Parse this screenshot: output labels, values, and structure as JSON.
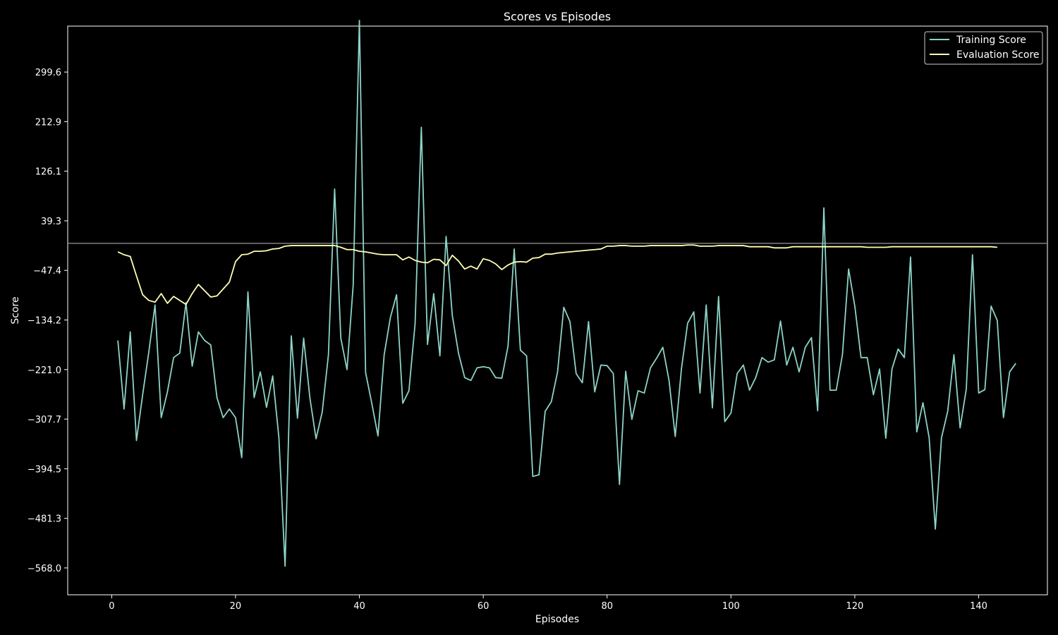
{
  "chart_data": {
    "type": "line",
    "title": "Scores vs Episodes",
    "xlabel": "Episodes",
    "ylabel": "Score",
    "xlim": [
      -7.1,
      151.1
    ],
    "ylim": [
      -615,
      380
    ],
    "xticks": [
      0,
      20,
      40,
      60,
      80,
      100,
      120,
      140
    ],
    "yticks": [
      -568.0,
      -481.3,
      -394.5,
      -307.7,
      -221.0,
      -134.2,
      -47.4,
      39.3,
      126.1,
      212.9,
      299.6
    ],
    "ytick_labels": [
      "−568.0",
      "−481.3",
      "−394.5",
      "−307.7",
      "−221.0",
      "−134.2",
      "−47.4",
      "39.3",
      "126.1",
      "212.9",
      "299.6"
    ],
    "hline": {
      "y": 0,
      "color": "#808080"
    },
    "grid": false,
    "legend_position": "top-right",
    "background": "#000000",
    "series": [
      {
        "name": "Training Score",
        "color": "#8dd3c7",
        "values": [
          -170,
          -290,
          -155,
          -345,
          -265,
          -190,
          -108,
          -305,
          -260,
          -200,
          -192,
          -104,
          -215,
          -155,
          -170,
          -178,
          -270,
          -305,
          -290,
          -305,
          -375,
          -85,
          -270,
          -225,
          -287,
          -232,
          -340,
          -565,
          -162,
          -306,
          -166,
          -270,
          -342,
          -295,
          -195,
          95,
          -166,
          -221,
          -73,
          390,
          -226,
          -280,
          -337,
          -195,
          -130,
          -90,
          -280,
          -258,
          -140,
          203,
          -177,
          -88,
          -197,
          12,
          -126,
          -192,
          -235,
          -240,
          -218,
          -216,
          -218,
          -235,
          -236,
          -180,
          -10,
          -187,
          -197,
          -408,
          -405,
          -294,
          -277,
          -225,
          -112,
          -137,
          -228,
          -244,
          -137,
          -260,
          -213,
          -214,
          -228,
          -422,
          -224,
          -308,
          -258,
          -262,
          -218,
          -201,
          -182,
          -240,
          -338,
          -220,
          -140,
          -120,
          -262,
          -108,
          -288,
          -93,
          -312,
          -297,
          -228,
          -213,
          -257,
          -235,
          -200,
          -208,
          -204,
          -136,
          -213,
          -182,
          -225,
          -182,
          -165,
          -293,
          62,
          -257,
          -257,
          -195,
          -45,
          -110,
          -200,
          -200,
          -265,
          -220,
          -341,
          -220,
          -185,
          -200,
          -24,
          -330,
          -279,
          -340,
          -500,
          -340,
          -294,
          -195,
          -323,
          -255,
          -20,
          -262,
          -256,
          -110,
          -135,
          -305,
          -225,
          -210
        ]
      },
      {
        "name": "Evaluation Score",
        "color": "#ffffb3",
        "values": [
          -15,
          -20,
          -23,
          -57,
          -90,
          -100,
          -103,
          -88,
          -105,
          -93,
          -100,
          -107,
          -88,
          -72,
          -83,
          -94,
          -92,
          -80,
          -68,
          -32,
          -20,
          -19,
          -14,
          -14,
          -13,
          -10,
          -9,
          -5,
          -4,
          -4,
          -4,
          -4,
          -4,
          -4,
          -4,
          -4,
          -7,
          -11,
          -11,
          -14,
          -15,
          -17,
          -19,
          -20,
          -20,
          -20,
          -29,
          -24,
          -30,
          -33,
          -34,
          -28,
          -29,
          -39,
          -21,
          -31,
          -45,
          -40,
          -45,
          -27,
          -30,
          -36,
          -46,
          -38,
          -33,
          -32,
          -33,
          -26,
          -25,
          -19,
          -19,
          -17,
          -16,
          -15,
          -14,
          -13,
          -12,
          -11,
          -10,
          -5,
          -5,
          -4,
          -4,
          -5,
          -5,
          -5,
          -4,
          -4,
          -4,
          -4,
          -4,
          -4,
          -3,
          -3,
          -5,
          -5,
          -5,
          -4,
          -4,
          -4,
          -4,
          -4,
          -6,
          -6,
          -6,
          -6,
          -8,
          -8,
          -8,
          -6,
          -6,
          -6,
          -6,
          -6,
          -6,
          -6,
          -6,
          -6,
          -6,
          -6,
          -6,
          -7,
          -7,
          -7,
          -7,
          -6,
          -6,
          -6,
          -6,
          -6,
          -6,
          -6,
          -6,
          -6,
          -6,
          -6,
          -6,
          -6,
          -6,
          -6,
          -6,
          -6,
          -7
        ]
      }
    ]
  }
}
